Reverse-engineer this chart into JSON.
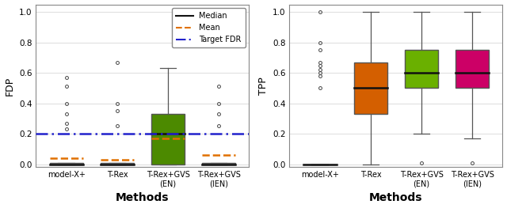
{
  "fdp": {
    "model_xplus": {
      "q1": 0.0,
      "median": 0.0,
      "q3": 0.01,
      "whisker_low": 0.0,
      "whisker_high": 0.01,
      "mean": 0.04,
      "fliers": [
        0.23,
        0.27,
        0.33,
        0.4,
        0.51,
        0.57
      ]
    },
    "trex": {
      "q1": 0.0,
      "median": 0.0,
      "q3": 0.01,
      "whisker_low": 0.0,
      "whisker_high": 0.01,
      "mean": 0.03,
      "fliers": [
        0.25,
        0.35,
        0.4,
        0.67
      ]
    },
    "trex_gvs_en": {
      "q1": 0.0,
      "median": 0.2,
      "q3": 0.33,
      "whisker_low": 0.0,
      "whisker_high": 0.63,
      "mean": 0.17,
      "fliers": []
    },
    "trex_gvs_ien": {
      "q1": 0.0,
      "median": 0.0,
      "q3": 0.01,
      "whisker_low": 0.0,
      "whisker_high": 0.01,
      "mean": 0.062,
      "fliers": [
        0.25,
        0.33,
        0.4,
        0.51
      ]
    }
  },
  "tpp": {
    "model_xplus": {
      "q1": 0.0,
      "median": 0.0,
      "q3": 0.0,
      "whisker_low": 0.0,
      "whisker_high": 0.0,
      "fliers": [
        0.5,
        0.58,
        0.6,
        0.62,
        0.65,
        0.67,
        0.75,
        0.8,
        1.0
      ]
    },
    "trex": {
      "q1": 0.33,
      "median": 0.5,
      "q3": 0.67,
      "whisker_low": 0.0,
      "whisker_high": 1.0,
      "fliers": []
    },
    "trex_gvs_en": {
      "q1": 0.5,
      "median": 0.6,
      "q3": 0.75,
      "whisker_low": 0.2,
      "whisker_high": 1.0,
      "fliers": [
        0.01
      ]
    },
    "trex_gvs_ien": {
      "q1": 0.5,
      "median": 0.6,
      "q3": 0.75,
      "whisker_low": 0.17,
      "whisker_high": 1.0,
      "fliers": [
        0.01
      ]
    }
  },
  "fdp_colors": [
    "#aaaaaa",
    "#aaaaaa",
    "#4c8a00",
    "#aaaaaa"
  ],
  "tpp_colors": [
    "#aaaaaa",
    "#d45f00",
    "#6ab000",
    "#cc0066"
  ],
  "box_edgecolor": "#555555",
  "median_color": "#111111",
  "mean_color": "#e07000",
  "fdr_color": "#2222cc",
  "target_fdr": 0.2,
  "fdp_ylabel": "FDP",
  "tpp_ylabel": "TPP",
  "xlabel": "Methods",
  "xticklabels": [
    "model-X+",
    "T-Rex",
    "T-Rex+GVS\n(EN)",
    "T-Rex+GVS\n(IEN)"
  ],
  "ylim_fdp": [
    -0.02,
    1.05
  ],
  "ylim_tpp": [
    -0.02,
    1.05
  ],
  "yticks": [
    0.0,
    0.2,
    0.4,
    0.6,
    0.8,
    1.0
  ],
  "background_color": "#ffffff",
  "grid_color": "#e0e0e0"
}
